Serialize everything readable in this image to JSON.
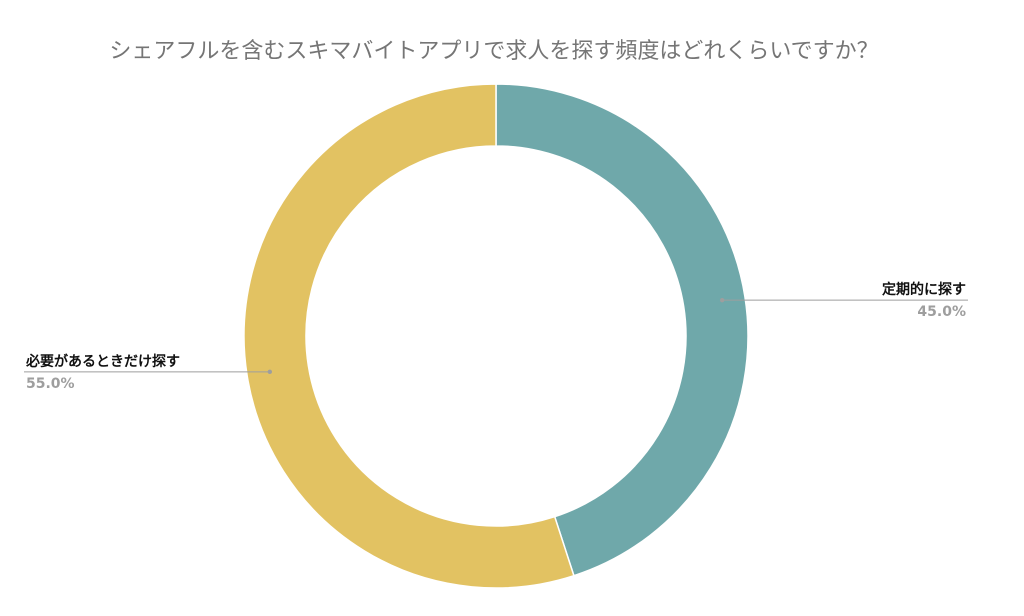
{
  "chart_data": {
    "type": "pie",
    "variant": "donut",
    "title": "シェアフルを含むスキマバイトアプリで求人を探す頻度はどれくらいですか？",
    "categories": [
      "定期的に探す",
      "必要があるときだけ探す"
    ],
    "values": [
      45.0,
      55.0
    ],
    "value_labels": [
      "45.0%",
      "55.0%"
    ],
    "colors": [
      "#6fa8aa",
      "#e2c262"
    ],
    "legend": "none"
  }
}
